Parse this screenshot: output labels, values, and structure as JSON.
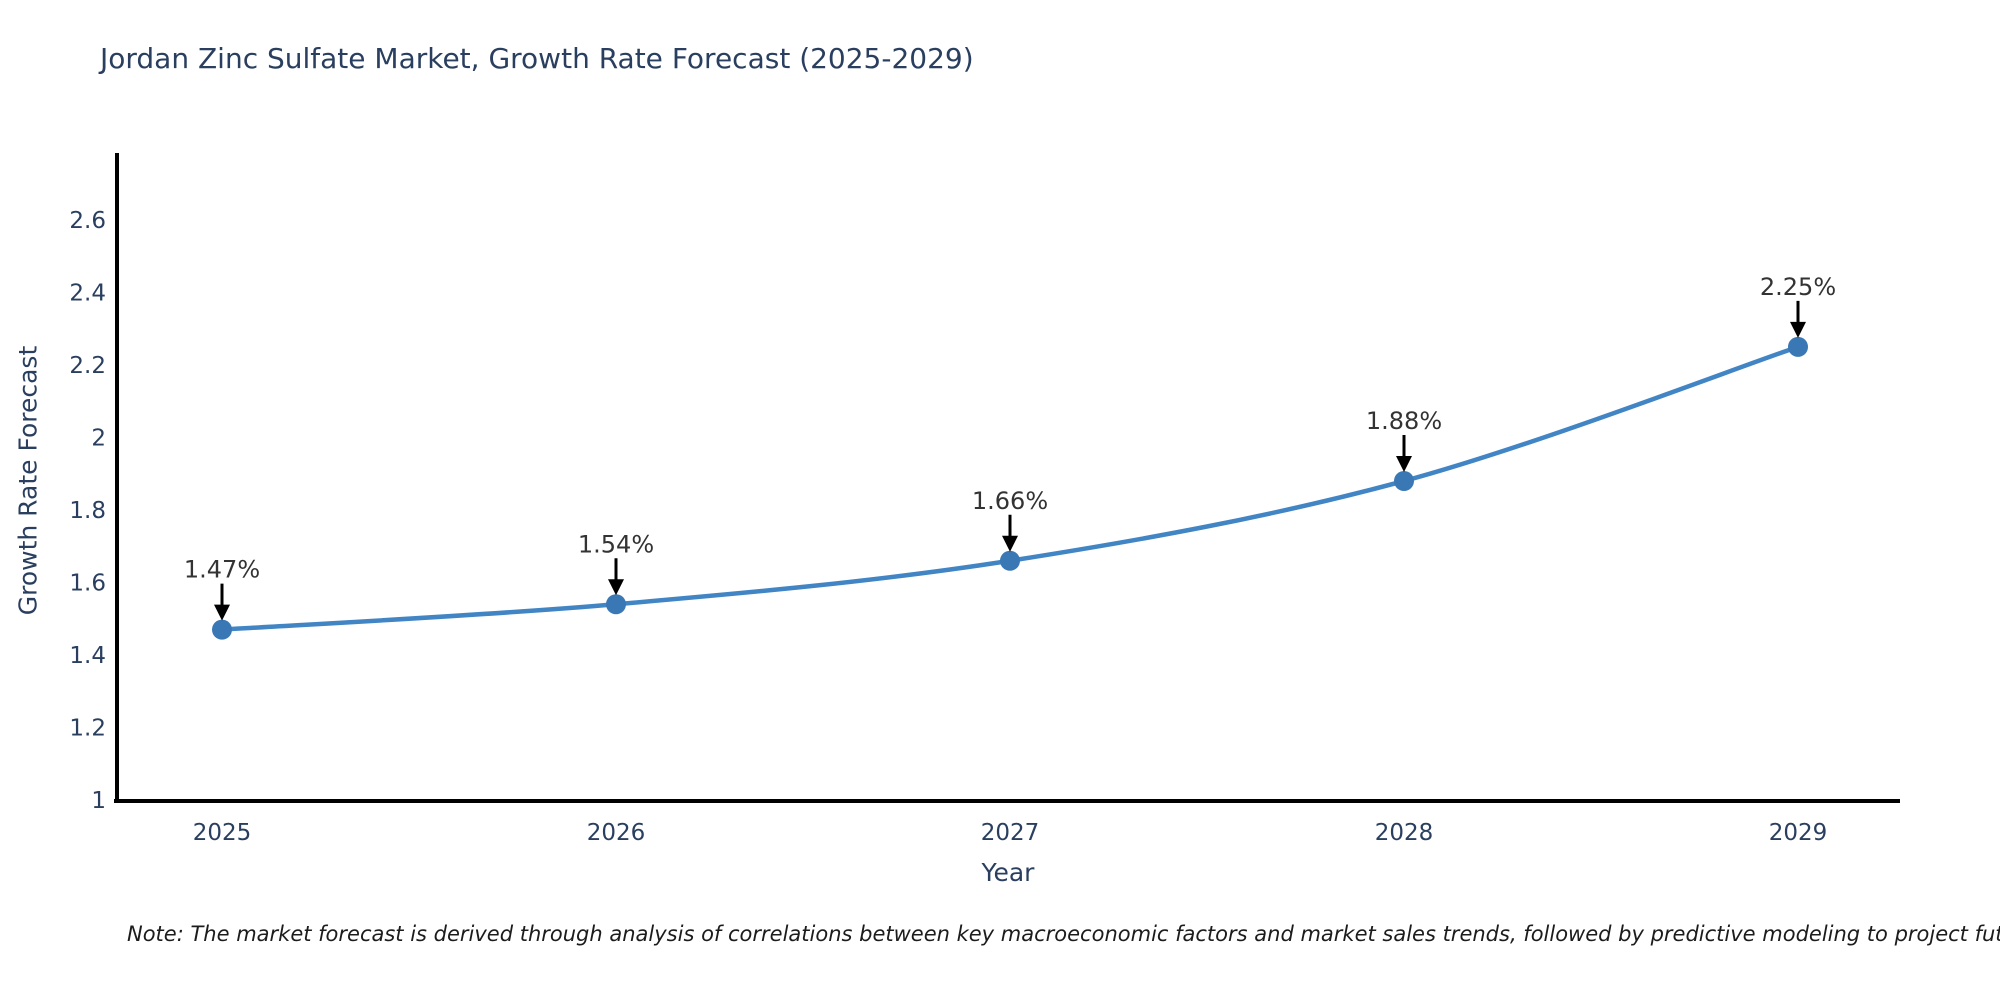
{
  "title": "Jordan Zinc Sulfate Market, Growth Rate Forecast (2025-2029)",
  "note": "Note: The market forecast is derived through analysis of correlations between key macroeconomic factors and market sales trends, followed by predictive modeling to project future sales",
  "chart_data": {
    "type": "line",
    "title": "Jordan Zinc Sulfate Market, Growth Rate Forecast (2025-2029)",
    "xlabel": "Year",
    "ylabel": "Growth Rate Forecast",
    "x": [
      2025,
      2026,
      2027,
      2028,
      2029
    ],
    "x_tick_labels": [
      "2025",
      "2026",
      "2027",
      "2028",
      "2029"
    ],
    "values": [
      1.47,
      1.54,
      1.66,
      1.88,
      2.25
    ],
    "point_labels": [
      "1.47%",
      "1.54%",
      "1.66%",
      "1.88%",
      "2.25%"
    ],
    "y_ticks": [
      1,
      1.2,
      1.4,
      1.6,
      1.8,
      2,
      2.2,
      2.4,
      2.6
    ],
    "y_tick_labels": [
      "1",
      "1.2",
      "1.4",
      "1.6",
      "1.8",
      "2",
      "2.2",
      "2.4",
      "2.6"
    ],
    "ylim": [
      1,
      2.78
    ],
    "grid": false,
    "legend_position": "none",
    "line_shape": "smooth",
    "colors": {
      "line": "#4285c4",
      "marker": "#3a78b5",
      "axis": "#000000",
      "tick_text": "#2a3f5f",
      "annotation_text": "#333333",
      "annotation_arrow": "#000000",
      "background": "#ffffff"
    }
  }
}
